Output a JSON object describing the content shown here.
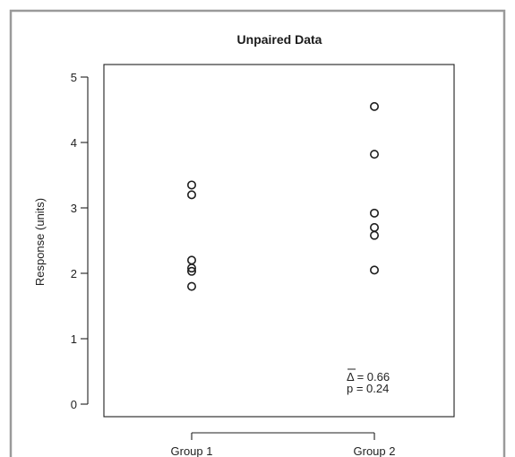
{
  "chart_data": {
    "type": "scatter",
    "title": "Unpaired Data",
    "ylabel": "Response (units)",
    "xlabel": "",
    "categories": [
      "Group 1",
      "Group 2"
    ],
    "ylim": [
      0,
      5
    ],
    "yticks": [
      "0",
      "1",
      "2",
      "3",
      "4",
      "5"
    ],
    "grid": false,
    "series": [
      {
        "category": "Group 1",
        "values": [
          3.35,
          3.2,
          2.2,
          2.08,
          2.03,
          1.8
        ]
      },
      {
        "category": "Group 2",
        "values": [
          4.55,
          3.82,
          2.92,
          2.7,
          2.58,
          2.05
        ]
      }
    ],
    "annotation": {
      "delta_symbol": "Δ",
      "delta_text": " = 0.66",
      "p_text": "p = 0.24"
    }
  }
}
